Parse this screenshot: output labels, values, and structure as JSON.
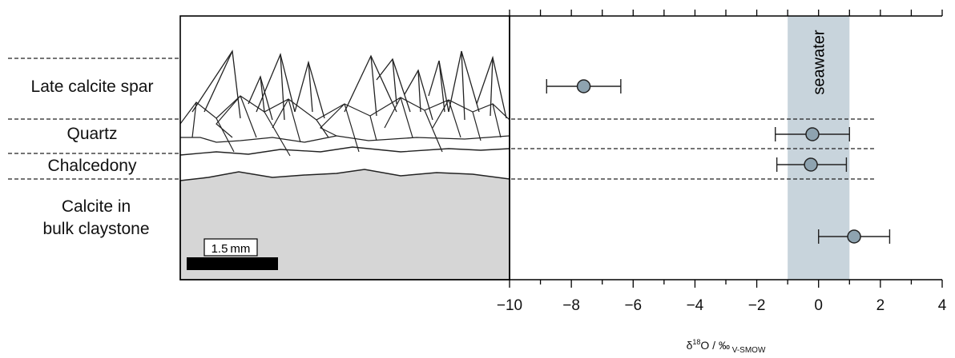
{
  "layers": {
    "late_calcite_spar": "Late calcite spar",
    "quartz": "Quartz",
    "chalcedony": "Chalcedony",
    "calcite_line1": "Calcite in",
    "calcite_line2": "bulk claystone"
  },
  "scale_bar_label": "1.5 mm",
  "colors": {
    "seawater_band": "#c8d4dc",
    "marker_fill": "#8ea3b0",
    "claystone_fill": "#d6d6d6",
    "scale_bar": "#000000"
  },
  "chart_data": {
    "type": "scatter",
    "title": "",
    "xlabel_main": "δ",
    "xlabel_sup": "18",
    "xlabel_rest": "O / ‰",
    "xlabel_sub": "V-SMOW",
    "xlim": [
      -10,
      4
    ],
    "xticks": [
      -10,
      -8,
      -6,
      -4,
      -2,
      0,
      2,
      4
    ],
    "tick_labels": [
      "−10",
      "−8",
      "−6",
      "−4",
      "−2",
      "0",
      "2",
      "4"
    ],
    "band": {
      "label": "seawater",
      "x0": -1,
      "x1": 1
    },
    "points": [
      {
        "category": "Late calcite spar",
        "x": -7.6,
        "xerr_low": -8.8,
        "xerr_high": -6.4
      },
      {
        "category": "Quartz",
        "x": -0.2,
        "xerr_low": -1.4,
        "xerr_high": 1.0
      },
      {
        "category": "Chalcedony",
        "x": -0.25,
        "xerr_low": -1.35,
        "xerr_high": 0.9
      },
      {
        "category": "Calcite in bulk claystone",
        "x": 1.15,
        "xerr_low": 0.0,
        "xerr_high": 2.3
      }
    ]
  }
}
